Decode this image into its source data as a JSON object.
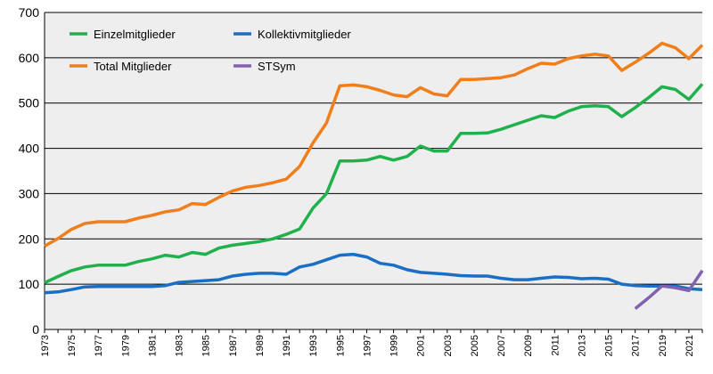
{
  "chart_data": {
    "type": "line",
    "title": "",
    "xlabel": "",
    "ylabel": "",
    "ylim": [
      0,
      700
    ],
    "yticks": [
      0,
      100,
      200,
      300,
      400,
      500,
      600,
      700
    ],
    "grid": true,
    "background": "#eeeeee",
    "legend_placement": "top-left, inside plot",
    "x": [
      1973,
      1974,
      1975,
      1976,
      1977,
      1978,
      1979,
      1980,
      1981,
      1982,
      1983,
      1984,
      1985,
      1986,
      1987,
      1988,
      1989,
      1990,
      1991,
      1992,
      1993,
      1994,
      1995,
      1996,
      1997,
      1998,
      1999,
      2000,
      2001,
      2002,
      2003,
      2004,
      2005,
      2006,
      2007,
      2008,
      2009,
      2010,
      2011,
      2012,
      2013,
      2014,
      2015,
      2016,
      2017,
      2018,
      2019,
      2020,
      2021,
      2022
    ],
    "xtick_labels": [
      "1973",
      "1975",
      "1977",
      "1979",
      "1981",
      "1983",
      "1985",
      "1987",
      "1989",
      "1991",
      "1993",
      "1995",
      "1997",
      "1999",
      "2001",
      "2003",
      "2005",
      "2007",
      "2009",
      "2011",
      "2013",
      "2015",
      "2017",
      "2019",
      "2021"
    ],
    "series": [
      {
        "name": "Einzelmitglieder",
        "color": "#20b14c",
        "values": [
          103,
          117,
          130,
          138,
          142,
          142,
          142,
          150,
          156,
          164,
          160,
          170,
          166,
          180,
          186,
          190,
          194,
          200,
          210,
          222,
          268,
          300,
          372,
          372,
          374,
          382,
          374,
          382,
          405,
          394,
          394,
          433,
          433,
          434,
          442,
          452,
          462,
          472,
          468,
          482,
          492,
          494,
          492,
          470,
          490,
          512,
          536,
          530,
          508,
          542
        ]
      },
      {
        "name": "Kollektivmitglieder",
        "color": "#1a6fc4",
        "values": [
          81,
          83,
          88,
          94,
          95,
          95,
          95,
          95,
          95,
          97,
          104,
          106,
          108,
          110,
          118,
          122,
          124,
          124,
          122,
          138,
          144,
          154,
          164,
          166,
          160,
          146,
          142,
          132,
          126,
          124,
          122,
          119,
          118,
          118,
          113,
          110,
          110,
          113,
          116,
          115,
          112,
          113,
          111,
          100,
          97,
          96,
          96,
          96,
          90,
          88
        ]
      },
      {
        "name": "Total Mitglieder",
        "color": "#f07e1b",
        "values": [
          184,
          201,
          221,
          234,
          238,
          238,
          238,
          246,
          252,
          260,
          264,
          278,
          276,
          292,
          306,
          314,
          318,
          324,
          332,
          360,
          412,
          456,
          538,
          540,
          536,
          528,
          518,
          514,
          534,
          520,
          516,
          552,
          552,
          554,
          556,
          562,
          576,
          588,
          586,
          598,
          604,
          608,
          604,
          572,
          590,
          610,
          632,
          622,
          598,
          628
        ]
      },
      {
        "name": "STSym",
        "color": "#8261b0",
        "x": [
          2017,
          2018,
          2019,
          2020,
          2021,
          2022
        ],
        "values": [
          46,
          70,
          96,
          92,
          86,
          130
        ]
      }
    ]
  }
}
